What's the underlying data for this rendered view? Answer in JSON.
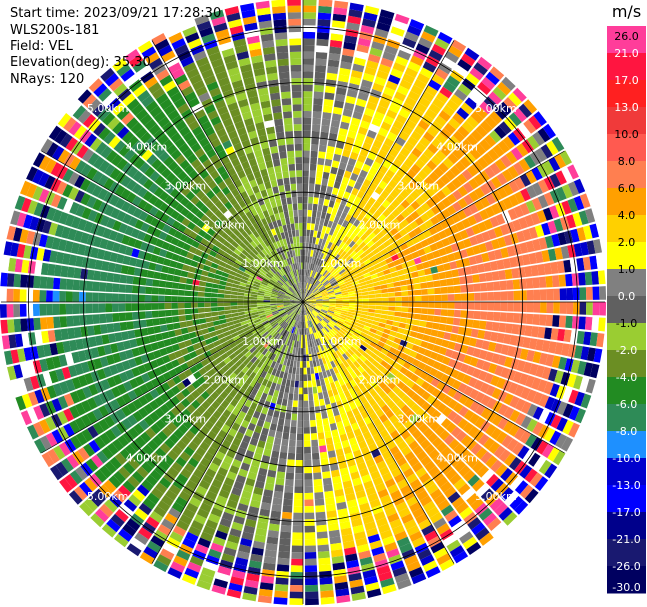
{
  "header": {
    "start_time": "Start time: 2023/09/21 17:28:30",
    "instrument": "WLS200s-181",
    "field": "Field: VEL",
    "elevation": "Elevation(deg): 35.30",
    "nrays": "NRays: 120"
  },
  "colorbar": {
    "unit": "m/s",
    "ticks": [
      "26.0",
      "21.0",
      "17.0",
      "13.0",
      "10.0",
      "8.0",
      "6.0",
      "4.0",
      "2.0",
      "1.0",
      "0.0",
      "-1.0",
      "-2.0",
      "-4.0",
      "-6.0",
      "-8.0",
      "-10.0",
      "-13.0",
      "-17.0",
      "-21.0",
      "-26.0",
      "-30.0"
    ],
    "bin_colors": [
      "#ff3d9a",
      "#ff1540",
      "#ff2020",
      "#f03a3a",
      "#ff5a50",
      "#ff7f50",
      "#ffa000",
      "#ffd000",
      "#ffff00",
      "#808080",
      "#606060",
      "#9acd32",
      "#6b8e23",
      "#228b22",
      "#2e8b57",
      "#1e90ff",
      "#0000cd",
      "#0000ff",
      "#00008b",
      "#191970",
      "#000060"
    ]
  },
  "chart_data": {
    "type": "heatmap",
    "projection": "polar-ppi",
    "nrays": 120,
    "range_rings_km": [
      1,
      2,
      3,
      4,
      5
    ],
    "max_range_km": 5.5,
    "range_ring_labels": [
      "1.00km",
      "2.00km",
      "3.00km",
      "4.00km",
      "5.00km"
    ],
    "value_units": "m/s",
    "vmin": -30,
    "vmax": 30,
    "velocity_pattern": "approx. sinusoidal with azimuth; positive (away) toward east, negative (toward) toward west; noisy beyond ~4.5 km"
  }
}
